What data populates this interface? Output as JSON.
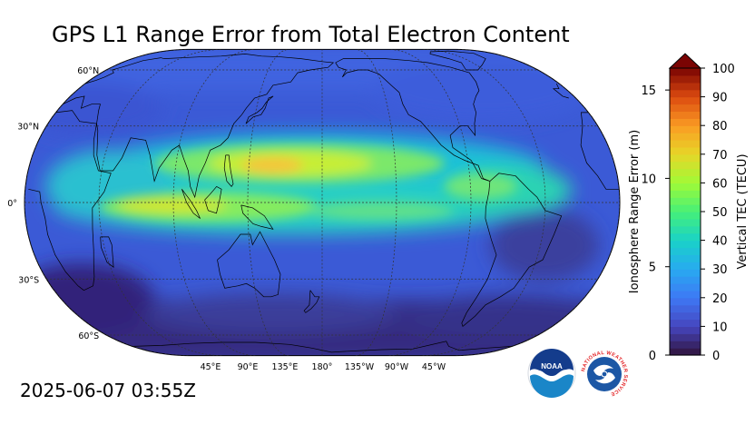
{
  "title": "GPS L1 Range Error from Total Electron Content",
  "timestamp": "2025-06-07 03:55Z",
  "map": {
    "projection": "Robinson",
    "center_longitude": "180°",
    "lat_labels": [
      "60°N",
      "30°N",
      "0°",
      "30°S",
      "60°S"
    ],
    "lon_labels": [
      "45°E",
      "90°E",
      "135°E",
      "180°",
      "135°W",
      "90°W",
      "45°W"
    ]
  },
  "colorbar": {
    "left_axis_title": "Ionosphere Range Error (m)",
    "right_axis_title": "Vertical TEC (TECU)",
    "left_ticks": [
      "0",
      "5",
      "10",
      "15"
    ],
    "right_ticks": [
      "0",
      "10",
      "20",
      "30",
      "40",
      "50",
      "60",
      "70",
      "80",
      "90",
      "100"
    ],
    "tec_min": 0,
    "tec_max": 100,
    "extend": "max",
    "colormap": "turbo"
  },
  "logos": {
    "noaa": {
      "text": "NOAA",
      "color": "#1a5aa8"
    },
    "nws": {
      "text": "NATIONAL WEATHER SERVICE",
      "color": "#e32326"
    }
  }
}
